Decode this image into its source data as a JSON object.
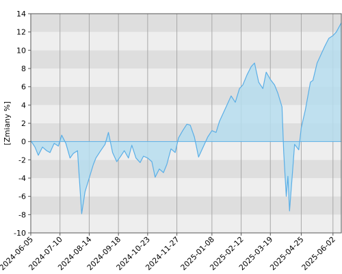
{
  "chart_data": {
    "type": "area",
    "ylabel": "[Zmiany %]",
    "xlabel": "",
    "title": "",
    "ylim": [
      -10,
      14
    ],
    "yticks": [
      -10,
      -8,
      -6,
      -4,
      -2,
      0,
      2,
      4,
      6,
      8,
      10,
      12,
      14
    ],
    "xlim": [
      "2024-06-05",
      "2025-06-12"
    ],
    "xticks": [
      "2024-06-05",
      "2024-07-10",
      "2024-08-14",
      "2024-09-18",
      "2024-10-23",
      "2024-11-27",
      "2025-01-08",
      "2025-02-12",
      "2025-03-19",
      "2025-04-25",
      "2025-06-02"
    ],
    "grid": true,
    "band_colors": [
      "#dedede",
      "#eeeeee"
    ],
    "line_color": "#5aaee6",
    "fill_color": "#b6ddee",
    "x": [
      "2024-06-05",
      "2024-06-10",
      "2024-06-14",
      "2024-06-19",
      "2024-06-24",
      "2024-06-28",
      "2024-07-03",
      "2024-07-08",
      "2024-07-12",
      "2024-07-17",
      "2024-07-22",
      "2024-07-26",
      "2024-07-31",
      "2024-08-05",
      "2024-08-09",
      "2024-08-14",
      "2024-08-19",
      "2024-08-22",
      "2024-08-27",
      "2024-09-02",
      "2024-09-06",
      "2024-09-11",
      "2024-09-16",
      "2024-09-20",
      "2024-09-25",
      "2024-09-30",
      "2024-10-04",
      "2024-10-09",
      "2024-10-14",
      "2024-10-18",
      "2024-10-23",
      "2024-10-28",
      "2024-11-01",
      "2024-11-06",
      "2024-11-11",
      "2024-11-15",
      "2024-11-20",
      "2024-11-25",
      "2024-11-29",
      "2024-12-04",
      "2024-12-09",
      "2024-12-13",
      "2024-12-18",
      "2024-12-23",
      "2024-12-30",
      "2025-01-03",
      "2025-01-08",
      "2025-01-13",
      "2025-01-17",
      "2025-01-22",
      "2025-01-27",
      "2025-01-31",
      "2025-02-05",
      "2025-02-10",
      "2025-02-14",
      "2025-02-19",
      "2025-02-24",
      "2025-02-28",
      "2025-03-05",
      "2025-03-10",
      "2025-03-14",
      "2025-03-19",
      "2025-03-24",
      "2025-03-28",
      "2025-04-02",
      "2025-04-04",
      "2025-04-07",
      "2025-04-09",
      "2025-04-11",
      "2025-04-15",
      "2025-04-17",
      "2025-04-22",
      "2025-04-25",
      "2025-04-30",
      "2025-05-06",
      "2025-05-09",
      "2025-05-14",
      "2025-05-19",
      "2025-05-23",
      "2025-05-28",
      "2025-06-02",
      "2025-06-06",
      "2025-06-12"
    ],
    "values": [
      0.1,
      -0.6,
      -1.5,
      -0.6,
      -1.0,
      -1.2,
      -0.2,
      -0.5,
      0.7,
      -0.2,
      -1.8,
      -1.3,
      -1.0,
      -7.9,
      -5.5,
      -4.0,
      -2.5,
      -1.8,
      -1.1,
      -0.3,
      1.0,
      -1.2,
      -2.2,
      -1.7,
      -1.0,
      -1.8,
      -0.4,
      -1.8,
      -2.3,
      -1.6,
      -1.8,
      -2.2,
      -3.9,
      -3.0,
      -3.4,
      -2.5,
      -0.8,
      -1.2,
      0.4,
      1.2,
      1.9,
      1.8,
      0.5,
      -1.7,
      -0.3,
      0.5,
      1.2,
      1.0,
      2.2,
      3.2,
      4.2,
      5.0,
      4.3,
      5.8,
      6.2,
      7.3,
      8.2,
      8.6,
      6.5,
      5.8,
      7.6,
      6.8,
      6.2,
      5.3,
      3.8,
      -1.2,
      -6.0,
      -3.8,
      -7.6,
      -2.8,
      -0.3,
      -0.9,
      1.5,
      3.5,
      6.5,
      6.7,
      8.6,
      9.6,
      10.4,
      11.3,
      11.6,
      12.0,
      13.0
    ]
  }
}
